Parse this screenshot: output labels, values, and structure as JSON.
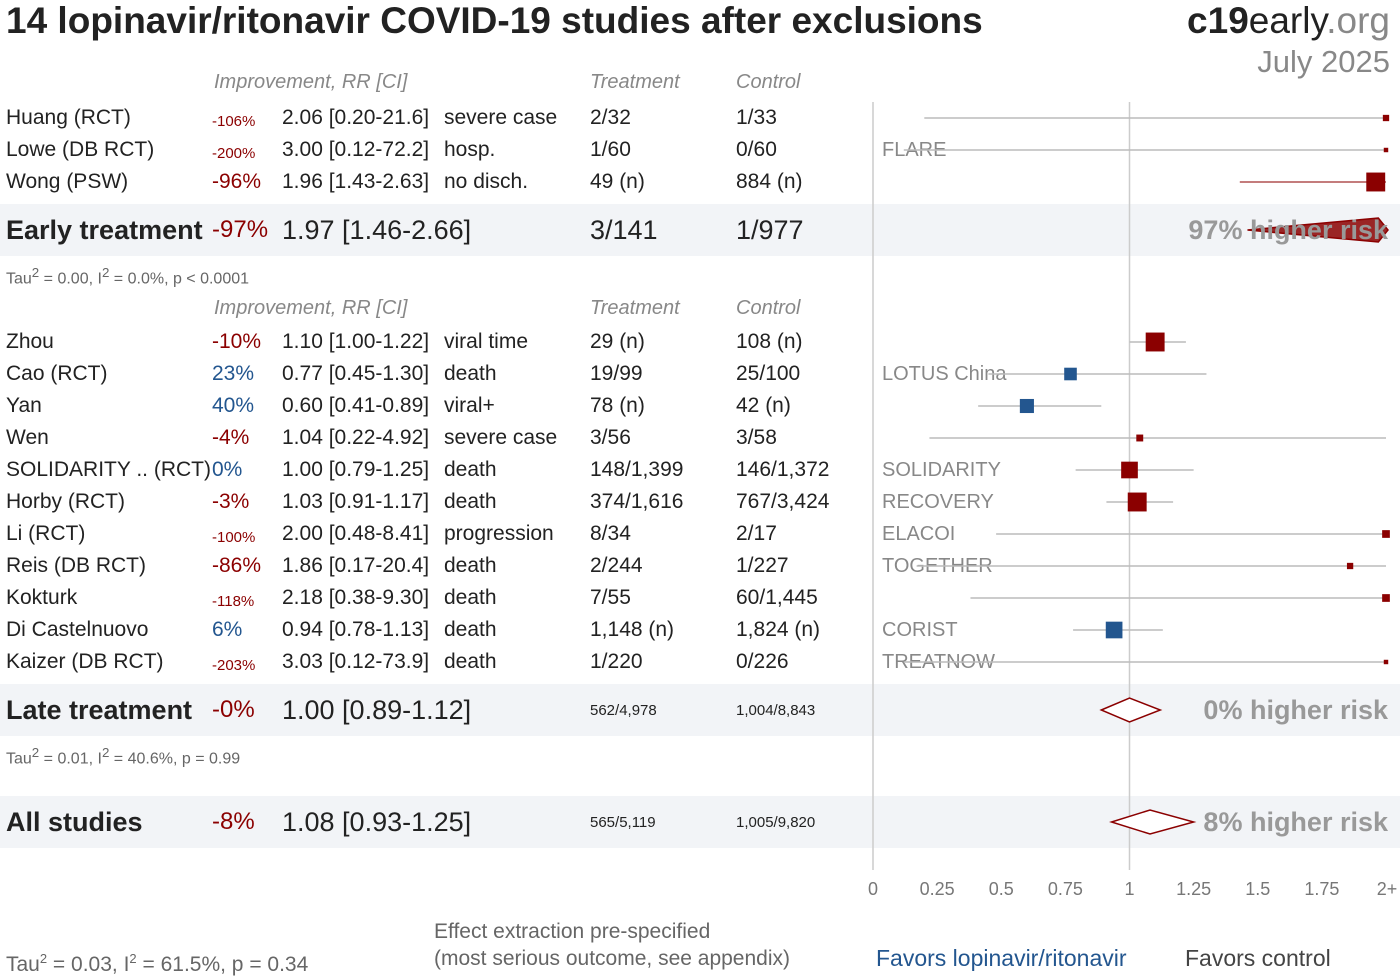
{
  "title": "14 lopinavir/ritonavir COVID-19 studies after exclusions",
  "brand": {
    "bold": "c19",
    "rest": "early",
    "tld": ".org"
  },
  "date": "July 2025",
  "headers": {
    "improvement": "Improvement, RR [CI]",
    "treatment": "Treatment",
    "control": "Control"
  },
  "early": {
    "studies": [
      {
        "name": "Huang (RCT)",
        "improvement": "-106%",
        "improvement_small": true,
        "rr_text": "2.06 [0.20-21.6]",
        "outcome": "severe case",
        "treatment": "2/32",
        "control": "1/33",
        "trial": "",
        "rr": 2.06,
        "lo": 0.2,
        "hi": 21.6,
        "weight": 1
      },
      {
        "name": "Lowe (DB RCT)",
        "improvement": "-200%",
        "improvement_small": true,
        "rr_text": "3.00 [0.12-72.2]",
        "outcome": "hosp.",
        "treatment": "1/60",
        "control": "0/60",
        "trial": "FLARE",
        "rr": 3.0,
        "lo": 0.12,
        "hi": 72.2,
        "weight": 0.5
      },
      {
        "name": "Wong (PSW)",
        "improvement": "-96%",
        "improvement_small": false,
        "rr_text": "1.96 [1.43-2.63]",
        "outcome": "no disch.",
        "treatment": "49 (n)",
        "control": "884 (n)",
        "trial": "",
        "rr": 1.96,
        "lo": 1.43,
        "hi": 2.63,
        "weight": 9
      }
    ],
    "summary": {
      "label": "Early treatment",
      "improvement": "-97%",
      "rr_text": "1.97 [1.46-2.66]",
      "treatment": "3/141",
      "control": "1/977",
      "risk": "97% higher risk",
      "rr": 1.97,
      "lo": 1.46,
      "hi": 2.66
    },
    "stats": {
      "tau": "Tau",
      "i": ", I",
      "rest1": " = 0.00, ",
      "rest2": " = 0.0%, p < 0.0001"
    }
  },
  "late": {
    "studies": [
      {
        "name": "Zhou",
        "improvement": "-10%",
        "improvement_small": false,
        "rr_text": "1.10 [1.00-1.22]",
        "outcome": "viral time",
        "treatment": "29 (n)",
        "control": "108 (n)",
        "trial": "",
        "rr": 1.1,
        "lo": 1.0,
        "hi": 1.22,
        "weight": 9
      },
      {
        "name": "Cao (RCT)",
        "improvement": "23%",
        "improvement_small": false,
        "rr_text": "0.77 [0.45-1.30]",
        "outcome": "death",
        "treatment": "19/99",
        "control": "25/100",
        "trial": "LOTUS China",
        "rr": 0.77,
        "lo": 0.45,
        "hi": 1.3,
        "weight": 4
      },
      {
        "name": "Yan",
        "improvement": "40%",
        "improvement_small": false,
        "rr_text": "0.60 [0.41-0.89]",
        "outcome": "viral+",
        "treatment": "78 (n)",
        "control": "42 (n)",
        "trial": "",
        "rr": 0.6,
        "lo": 0.41,
        "hi": 0.89,
        "weight": 5
      },
      {
        "name": "Wen",
        "improvement": "-4%",
        "improvement_small": false,
        "rr_text": "1.04 [0.22-4.92]",
        "outcome": "severe case",
        "treatment": "3/56",
        "control": "3/58",
        "trial": "",
        "rr": 1.04,
        "lo": 0.22,
        "hi": 4.92,
        "weight": 1.2
      },
      {
        "name": "SOLIDARITY .. (RCT)",
        "improvement": "0%",
        "improvement_small": false,
        "rr_text": "1.00 [0.79-1.25]",
        "outcome": "death",
        "treatment": "148/1,399",
        "control": "146/1,372",
        "trial": "SOLIDARITY",
        "rr": 1.0,
        "lo": 0.79,
        "hi": 1.25,
        "weight": 7
      },
      {
        "name": "Horby (RCT)",
        "improvement": "-3%",
        "improvement_small": false,
        "rr_text": "1.03 [0.91-1.17]",
        "outcome": "death",
        "treatment": "374/1,616",
        "control": "767/3,424",
        "trial": "RECOVERY",
        "rr": 1.03,
        "lo": 0.91,
        "hi": 1.17,
        "weight": 9
      },
      {
        "name": "Li (RCT)",
        "improvement": "-100%",
        "improvement_small": true,
        "rr_text": "2.00 [0.48-8.41]",
        "outcome": "progression",
        "treatment": "8/34",
        "control": "2/17",
        "trial": "ELACOI",
        "rr": 2.0,
        "lo": 0.48,
        "hi": 8.41,
        "weight": 1.5
      },
      {
        "name": "Reis (DB RCT)",
        "improvement": "-86%",
        "improvement_small": false,
        "rr_text": "1.86 [0.17-20.4]",
        "outcome": "death",
        "treatment": "2/244",
        "control": "1/227",
        "trial": "TOGETHER",
        "rr": 1.86,
        "lo": 0.17,
        "hi": 20.4,
        "weight": 1
      },
      {
        "name": "Kokturk",
        "improvement": "-118%",
        "improvement_small": true,
        "rr_text": "2.18 [0.38-9.30]",
        "outcome": "death",
        "treatment": "7/55",
        "control": "60/1,445",
        "trial": "",
        "rr": 2.18,
        "lo": 0.38,
        "hi": 9.3,
        "weight": 1.5
      },
      {
        "name": "Di Castelnuovo",
        "improvement": "6%",
        "improvement_small": false,
        "rr_text": "0.94 [0.78-1.13]",
        "outcome": "death",
        "treatment": "1,148 (n)",
        "control": "1,824 (n)",
        "trial": "CORIST",
        "rr": 0.94,
        "lo": 0.78,
        "hi": 1.13,
        "weight": 7
      },
      {
        "name": "Kaizer (DB RCT)",
        "improvement": "-203%",
        "improvement_small": true,
        "rr_text": "3.03 [0.12-73.9]",
        "outcome": "death",
        "treatment": "1/220",
        "control": "0/226",
        "trial": "TREATNOW",
        "rr": 3.03,
        "lo": 0.12,
        "hi": 73.9,
        "weight": 0.5
      }
    ],
    "summary": {
      "label": "Late treatment",
      "improvement": "-0%",
      "rr_text": "1.00 [0.89-1.12]",
      "treatment": "562/4,978",
      "control": "1,004/8,843",
      "risk": "0% higher risk",
      "rr": 1.0,
      "lo": 0.89,
      "hi": 1.12
    },
    "stats": {
      "tau": "Tau",
      "i": ", I",
      "rest1": " = 0.01, ",
      "rest2": " = 40.6%, p = 0.99"
    }
  },
  "all": {
    "summary": {
      "label": "All studies",
      "improvement": "-8%",
      "rr_text": "1.08 [0.93-1.25]",
      "treatment": "565/5,119",
      "control": "1,005/9,820",
      "risk": "8% higher risk",
      "rr": 1.08,
      "lo": 0.93,
      "hi": 1.25
    }
  },
  "footer": {
    "stats_tau": "Tau",
    "stats_i": ", I",
    "stats_rest1": " = 0.03, ",
    "stats_rest2": " = 61.5%, p = 0.34",
    "note1": "Effect extraction pre-specified",
    "note2": "(most serious outcome, see appendix)",
    "favors_left": "Favors lopinavir/ritonavir",
    "favors_right": "Favors control"
  },
  "chart_data": {
    "type": "forest",
    "x_ticks": [
      0,
      0.25,
      0.5,
      0.75,
      1,
      1.25,
      1.5,
      1.75,
      2
    ],
    "x_tick_labels": [
      "0",
      "0.25",
      "0.5",
      "0.75",
      "1",
      "1.25",
      "1.5",
      "1.75",
      "2+"
    ],
    "xlim": [
      0,
      2
    ],
    "reference_line": 1,
    "colors": {
      "harm": "#8b0000",
      "benefit": "#23568f",
      "ci_line": "#bbbbbb",
      "axis": "#cccccc"
    }
  }
}
